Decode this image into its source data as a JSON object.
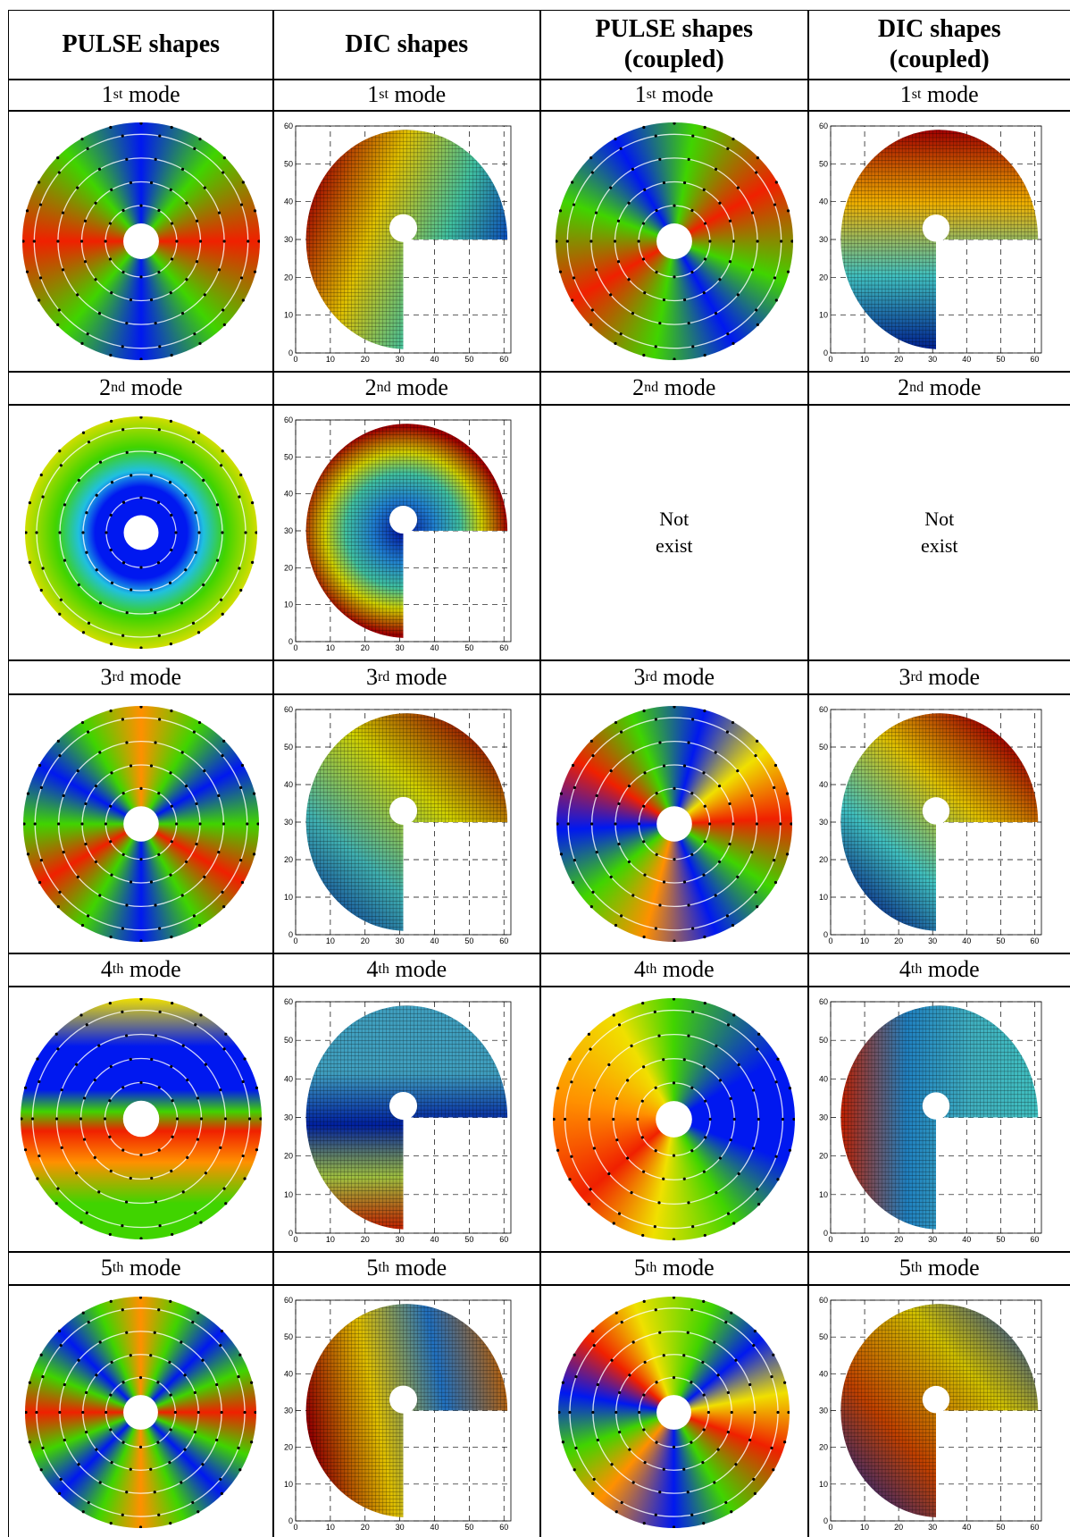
{
  "table": {
    "header": [
      "PULSE shapes",
      "DIC shapes",
      "PULSE shapes (coupled)",
      "DIC shapes (coupled)"
    ],
    "rows": [
      {
        "ordinal": "1",
        "suffix": "st",
        "word": "mode"
      },
      {
        "ordinal": "2",
        "suffix": "nd",
        "word": "mode",
        "pulse_coupled": "Not exist",
        "dic_coupled": "Not exist"
      },
      {
        "ordinal": "3",
        "suffix": "rd",
        "word": "mode"
      },
      {
        "ordinal": "4",
        "suffix": "th",
        "word": "mode"
      },
      {
        "ordinal": "5",
        "suffix": "th",
        "word": "mode"
      }
    ],
    "dic_axis_ticks": [
      0,
      10,
      20,
      30,
      40,
      50,
      60
    ]
  }
}
